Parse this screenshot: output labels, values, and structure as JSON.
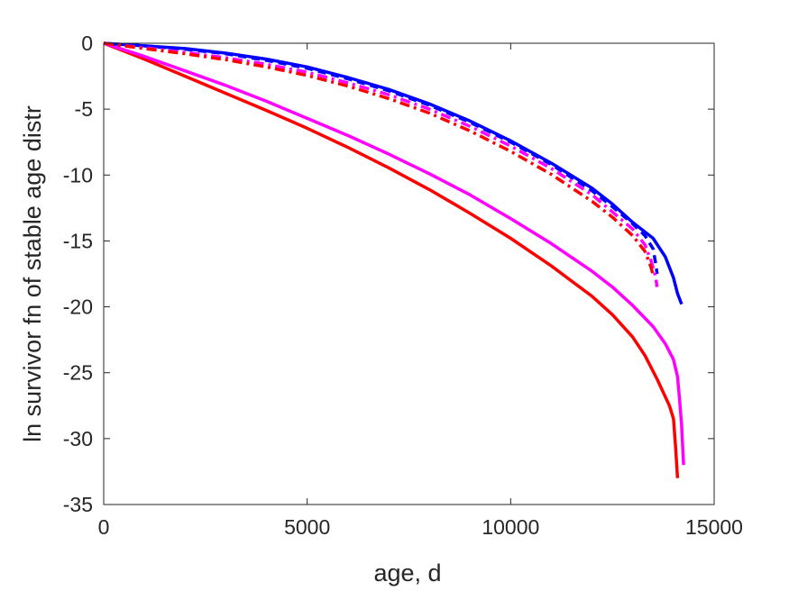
{
  "chart_data": {
    "type": "line",
    "title": "",
    "xlabel": "age, d",
    "ylabel": "ln survivor fn of stable age distr",
    "xlim": [
      0,
      15000
    ],
    "ylim": [
      -35,
      0
    ],
    "xticks": [
      0,
      5000,
      10000,
      15000
    ],
    "yticks": [
      0,
      -5,
      -10,
      -15,
      -20,
      -25,
      -30,
      -35
    ],
    "xtick_labels": [
      "0",
      "5000",
      "10000",
      "15000"
    ],
    "ytick_labels": [
      "0",
      "-5",
      "-10",
      "-15",
      "-20",
      "-25",
      "-30",
      "-35"
    ],
    "grid": false,
    "legend": "none",
    "series": [
      {
        "color": "#ff0000",
        "style": "solid",
        "points": [
          [
            0,
            0
          ],
          [
            1000,
            -1.2
          ],
          [
            2000,
            -2.5
          ],
          [
            3000,
            -3.8
          ],
          [
            4000,
            -5.1
          ],
          [
            5000,
            -6.45
          ],
          [
            6000,
            -7.9
          ],
          [
            7000,
            -9.45
          ],
          [
            8000,
            -11.1
          ],
          [
            9000,
            -12.9
          ],
          [
            10000,
            -14.8
          ],
          [
            11000,
            -16.9
          ],
          [
            12000,
            -19.2
          ],
          [
            12500,
            -20.6
          ],
          [
            13000,
            -22.3
          ],
          [
            13300,
            -23.7
          ],
          [
            13600,
            -25.5
          ],
          [
            13900,
            -27.5
          ],
          [
            14000,
            -28.5
          ],
          [
            14050,
            -30.5
          ],
          [
            14100,
            -33.0
          ]
        ]
      },
      {
        "color": "#ff00ff",
        "style": "solid",
        "points": [
          [
            0,
            0
          ],
          [
            1000,
            -1.0
          ],
          [
            2000,
            -2.1
          ],
          [
            3000,
            -3.2
          ],
          [
            4000,
            -4.4
          ],
          [
            5000,
            -5.7
          ],
          [
            6000,
            -7.0
          ],
          [
            7000,
            -8.4
          ],
          [
            8000,
            -9.9
          ],
          [
            9000,
            -11.5
          ],
          [
            10000,
            -13.3
          ],
          [
            11000,
            -15.2
          ],
          [
            12000,
            -17.3
          ],
          [
            12500,
            -18.5
          ],
          [
            13000,
            -19.9
          ],
          [
            13500,
            -21.5
          ],
          [
            13800,
            -22.8
          ],
          [
            14000,
            -24.0
          ],
          [
            14100,
            -25.3
          ],
          [
            14150,
            -27.0
          ],
          [
            14200,
            -29.0
          ],
          [
            14250,
            -32.0
          ]
        ]
      },
      {
        "color": "#0000ff",
        "style": "solid",
        "points": [
          [
            0,
            0
          ],
          [
            1000,
            -0.2
          ],
          [
            2000,
            -0.4
          ],
          [
            3000,
            -0.75
          ],
          [
            4000,
            -1.2
          ],
          [
            5000,
            -1.8
          ],
          [
            6000,
            -2.6
          ],
          [
            7000,
            -3.5
          ],
          [
            8000,
            -4.6
          ],
          [
            9000,
            -5.9
          ],
          [
            10000,
            -7.4
          ],
          [
            11000,
            -9.1
          ],
          [
            12000,
            -11.0
          ],
          [
            12500,
            -12.2
          ],
          [
            13000,
            -13.6
          ],
          [
            13500,
            -14.8
          ],
          [
            13800,
            -16.2
          ],
          [
            14000,
            -17.8
          ],
          [
            14100,
            -19.0
          ],
          [
            14200,
            -19.8
          ]
        ]
      },
      {
        "color": "#0000ff",
        "style": "dashed",
        "points": [
          [
            0,
            0
          ],
          [
            1000,
            -0.2
          ],
          [
            2000,
            -0.45
          ],
          [
            3000,
            -0.8
          ],
          [
            4000,
            -1.3
          ],
          [
            5000,
            -1.9
          ],
          [
            6000,
            -2.7
          ],
          [
            7000,
            -3.6
          ],
          [
            8000,
            -4.7
          ],
          [
            9000,
            -6.0
          ],
          [
            10000,
            -7.5
          ],
          [
            11000,
            -9.2
          ],
          [
            12000,
            -11.2
          ],
          [
            12500,
            -12.4
          ],
          [
            13000,
            -13.7
          ],
          [
            13300,
            -14.6
          ],
          [
            13500,
            -15.6
          ],
          [
            13550,
            -16.5
          ],
          [
            13600,
            -17.5
          ]
        ]
      },
      {
        "color": "#ff00ff",
        "style": "dashdot",
        "points": [
          [
            0,
            0
          ],
          [
            1000,
            -0.35
          ],
          [
            2000,
            -0.7
          ],
          [
            3000,
            -1.1
          ],
          [
            4000,
            -1.6
          ],
          [
            5000,
            -2.2
          ],
          [
            6000,
            -3.0
          ],
          [
            7000,
            -3.9
          ],
          [
            8000,
            -5.0
          ],
          [
            9000,
            -6.3
          ],
          [
            10000,
            -7.8
          ],
          [
            11000,
            -9.5
          ],
          [
            12000,
            -11.5
          ],
          [
            12500,
            -12.8
          ],
          [
            13000,
            -14.1
          ],
          [
            13300,
            -15.3
          ],
          [
            13450,
            -16.5
          ],
          [
            13550,
            -17.6
          ],
          [
            13600,
            -18.5
          ]
        ]
      },
      {
        "color": "#ff0000",
        "style": "dashdot",
        "points": [
          [
            0,
            0
          ],
          [
            1000,
            -0.4
          ],
          [
            2000,
            -0.8
          ],
          [
            3000,
            -1.25
          ],
          [
            4000,
            -1.8
          ],
          [
            5000,
            -2.45
          ],
          [
            6000,
            -3.25
          ],
          [
            7000,
            -4.2
          ],
          [
            8000,
            -5.3
          ],
          [
            9000,
            -6.65
          ],
          [
            10000,
            -8.2
          ],
          [
            11000,
            -9.95
          ],
          [
            12000,
            -12.0
          ],
          [
            12500,
            -13.2
          ],
          [
            13000,
            -14.6
          ],
          [
            13300,
            -15.8
          ],
          [
            13450,
            -17.0
          ],
          [
            13500,
            -17.6
          ]
        ]
      }
    ]
  }
}
